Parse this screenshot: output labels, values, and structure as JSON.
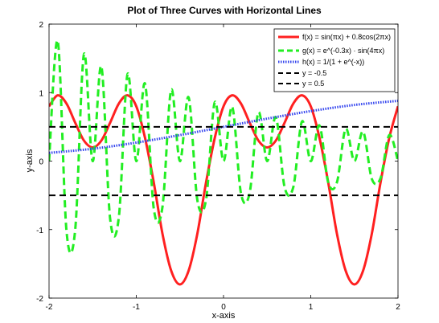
{
  "chart_data": {
    "type": "line",
    "title": "Plot of Three Curves with Horizontal Lines",
    "xlabel": "x-axis",
    "ylabel": "y-axis",
    "xlim": [
      -2,
      2
    ],
    "ylim": [
      -2,
      2
    ],
    "xticks": [
      -2,
      -1,
      0,
      1,
      2
    ],
    "yticks": [
      -2,
      -1,
      0,
      1,
      2
    ],
    "xtick_labels": [
      "-2",
      "-1",
      "0",
      "1",
      "2"
    ],
    "ytick_labels": [
      "-2",
      "-1",
      "0",
      "1",
      "2"
    ],
    "grid": false,
    "legend_position": "top-right",
    "series": [
      {
        "name": "f(x) = sin(πx) + 0.8cos(2πx)",
        "color": "#ff2020",
        "style": "solid",
        "x": [
          -2.0,
          -1.9,
          -1.8,
          -1.7,
          -1.6,
          -1.5,
          -1.4,
          -1.3,
          -1.2,
          -1.1,
          -1.0,
          -0.9,
          -0.8,
          -0.7,
          -0.6,
          -0.5,
          -0.4,
          -0.3,
          -0.2,
          -0.1,
          0.0,
          0.1,
          0.2,
          0.3,
          0.4,
          0.5,
          0.6,
          0.7,
          0.8,
          0.9,
          1.0,
          1.1,
          1.2,
          1.3,
          1.4,
          1.5,
          1.6,
          1.7,
          1.8,
          1.9,
          2.0
        ],
        "y": [
          0.8,
          0.96,
          0.84,
          0.56,
          0.3,
          0.2,
          0.3,
          0.56,
          0.84,
          0.96,
          0.8,
          0.34,
          -0.31,
          -1.06,
          -1.6,
          -1.8,
          -1.6,
          -1.06,
          -0.31,
          0.34,
          0.8,
          0.96,
          0.84,
          0.56,
          0.3,
          0.2,
          0.3,
          0.56,
          0.84,
          0.96,
          0.8,
          0.34,
          -0.31,
          -1.06,
          -1.6,
          -1.8,
          -1.6,
          -1.06,
          -0.31,
          0.34,
          0.8
        ]
      },
      {
        "name": "g(x) = e^(-0.3x) · sin(4πx)",
        "color": "#22ee22",
        "style": "dashed",
        "x": [
          -2.0,
          -1.9,
          -1.8,
          -1.7,
          -1.6,
          -1.5,
          -1.4,
          -1.3,
          -1.2,
          -1.1,
          -1.0,
          -0.9,
          -0.8,
          -0.7,
          -0.6,
          -0.5,
          -0.4,
          -0.3,
          -0.2,
          -0.1,
          0.0,
          0.1,
          0.2,
          0.3,
          0.4,
          0.5,
          0.6,
          0.7,
          0.8,
          0.9,
          1.0,
          1.1,
          1.2,
          1.3,
          1.4,
          1.5,
          1.6,
          1.7,
          1.8,
          1.9,
          2.0
        ],
        "y": [
          0.0,
          1.75,
          -1.02,
          -1.0,
          1.56,
          0.0,
          1.38,
          -0.84,
          -0.82,
          1.27,
          0.0,
          1.13,
          -0.69,
          -0.67,
          1.04,
          0.0,
          0.93,
          -0.57,
          -0.56,
          0.86,
          0.0,
          0.79,
          -0.47,
          -0.46,
          0.71,
          0.0,
          0.64,
          -0.38,
          -0.38,
          0.58,
          0.0,
          0.52,
          -0.31,
          -0.31,
          0.47,
          0.0,
          0.43,
          -0.26,
          -0.25,
          0.38,
          0.0
        ]
      },
      {
        "name": "h(x) = 1/(1 + e^(-x))",
        "color": "#3344ee",
        "style": "dotted",
        "x": [
          -2.0,
          -1.5,
          -1.0,
          -0.5,
          0.0,
          0.5,
          1.0,
          1.5,
          2.0
        ],
        "y": [
          0.12,
          0.18,
          0.27,
          0.38,
          0.5,
          0.62,
          0.73,
          0.82,
          0.88
        ]
      },
      {
        "name": "y = -0.5",
        "color": "#000000",
        "style": "dashed",
        "x": [
          -2,
          2
        ],
        "y": [
          -0.5,
          -0.5
        ]
      },
      {
        "name": "y = 0.5",
        "color": "#000000",
        "style": "dashed",
        "x": [
          -2,
          2
        ],
        "y": [
          0.5,
          0.5
        ]
      }
    ]
  }
}
